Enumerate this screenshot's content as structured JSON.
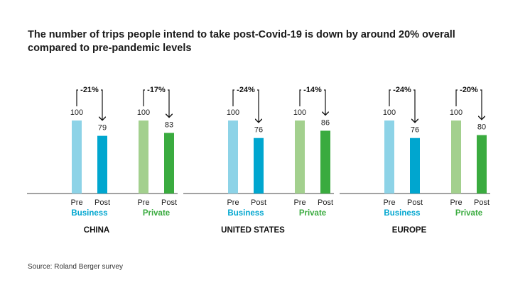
{
  "title": "The number of trips people intend to take post-Covid-19 is down by around 20% overall compared to pre-pandemic levels",
  "source": "Source: Roland Berger survey",
  "colors": {
    "business_pre": "#8dd3e7",
    "business_post": "#00a6cf",
    "private_pre": "#a3d08e",
    "private_post": "#3aab3f",
    "business_label": "#00a6cf",
    "private_label": "#3aab3f"
  },
  "chart_data": [
    {
      "type": "bar",
      "region": "CHINA",
      "groups": [
        {
          "name": "Business",
          "categories": [
            "Pre",
            "Post"
          ],
          "values": [
            100,
            79
          ],
          "change": "-21%"
        },
        {
          "name": "Private",
          "categories": [
            "Pre",
            "Post"
          ],
          "values": [
            100,
            83
          ],
          "change": "-17%"
        }
      ],
      "ylim": [
        0,
        100
      ]
    },
    {
      "type": "bar",
      "region": "UNITED STATES",
      "groups": [
        {
          "name": "Business",
          "categories": [
            "Pre",
            "Post"
          ],
          "values": [
            100,
            76
          ],
          "change": "-24%"
        },
        {
          "name": "Private",
          "categories": [
            "Pre",
            "Post"
          ],
          "values": [
            100,
            86
          ],
          "change": "-14%"
        }
      ],
      "ylim": [
        0,
        100
      ]
    },
    {
      "type": "bar",
      "region": "EUROPE",
      "groups": [
        {
          "name": "Business",
          "categories": [
            "Pre",
            "Post"
          ],
          "values": [
            100,
            76
          ],
          "change": "-24%"
        },
        {
          "name": "Private",
          "categories": [
            "Pre",
            "Post"
          ],
          "values": [
            100,
            80
          ],
          "change": "-20%"
        }
      ],
      "ylim": [
        0,
        100
      ]
    }
  ]
}
